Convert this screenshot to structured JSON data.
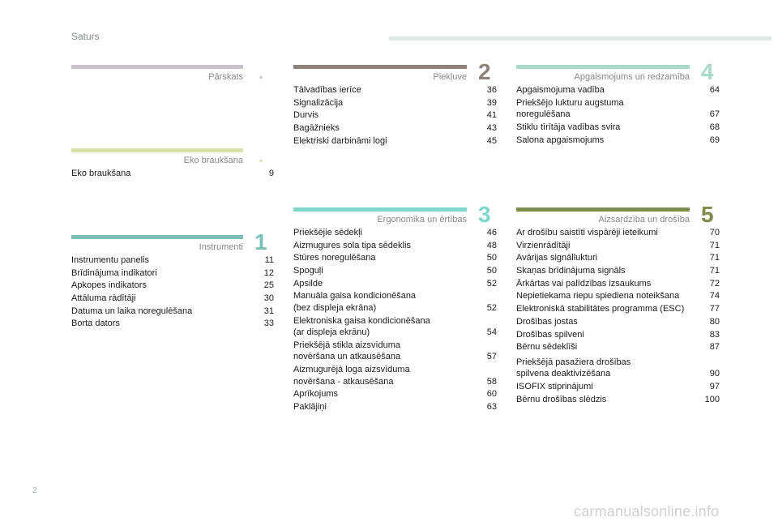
{
  "header": {
    "title": "Saturs"
  },
  "colors": {
    "parskats": "#c7c2cc",
    "eko": "#d9e2a9",
    "instrumenti": "#7bbfb7",
    "piekluve": "#8c8178",
    "ergonomika": "#7fd7cc",
    "apgaismojums": "#a8dac8",
    "aizsardziba": "#7d8c4a"
  },
  "sections": {
    "parskats": {
      "title": "Pārskats",
      "num": ""
    },
    "eko": {
      "title": "Eko braukšana",
      "num": "",
      "items": [
        {
          "label": "Eko braukšana",
          "page": "9"
        }
      ]
    },
    "instrumenti": {
      "title": "Instrumenti",
      "num": "1",
      "items": [
        {
          "label": "Instrumentu panelis",
          "page": "11"
        },
        {
          "label": "Brīdinājuma indikatori",
          "page": "12"
        },
        {
          "label": "Apkopes indikators",
          "page": "25"
        },
        {
          "label": "Attāluma rādītāji",
          "page": "30"
        },
        {
          "label": "Datuma un laika noregulēšana",
          "page": "31"
        },
        {
          "label": "Borta dators",
          "page": "33"
        }
      ]
    },
    "piekluve": {
      "title": "Piekļuve",
      "num": "2",
      "items": [
        {
          "label": "Tālvadības ierīce",
          "page": "36"
        },
        {
          "label": "Signalizācija",
          "page": "39"
        },
        {
          "label": "Durvis",
          "page": "41"
        },
        {
          "label": "Bagāžnieks",
          "page": "43"
        },
        {
          "label": "Elektriski darbināmi logi",
          "page": "45"
        }
      ]
    },
    "ergonomika": {
      "title": "Ergonomika un ērtības",
      "num": "3",
      "items": [
        {
          "label": "Priekšējie sēdekļi",
          "page": "46"
        },
        {
          "label": "Aizmugures sola tipa sēdeklis",
          "page": "48"
        },
        {
          "label": "Stūres noregulēšana",
          "page": "50"
        },
        {
          "label": "Spoguļi",
          "page": "50"
        },
        {
          "label": "Apsilde",
          "page": "52"
        },
        {
          "label": "Manuāla gaisa kondicionēšana\n    (bez displeja ekrāna)",
          "page": "52"
        },
        {
          "label": "Elektroniska gaisa kondicionēšana\n    (ar displeja ekrānu)",
          "page": "54"
        },
        {
          "label": "Priekšējā stikla aizsvīduma\n    novēršana un atkausēšana",
          "page": "57"
        },
        {
          "label": "Aizmugurējā loga aizsvīduma\n    novēršana - atkausēšana",
          "page": "58"
        },
        {
          "label": "Aprīkojums",
          "page": "60"
        },
        {
          "label": "Paklājiņi",
          "page": "63"
        }
      ]
    },
    "apgaismojums": {
      "title": "Apgaismojums un redzamība",
      "num": "4",
      "items": [
        {
          "label": "Apgaismojuma vadība",
          "page": "64"
        },
        {
          "label": "Priekšējo lukturu augstuma\n    noregulēšana",
          "page": "67"
        },
        {
          "label": "Stiklu tīrītāja vadības svira",
          "page": "68"
        },
        {
          "label": "Salona apgaismojums",
          "page": "69"
        }
      ]
    },
    "aizsardziba": {
      "title": "Aizsardzība un drošība",
      "num": "5",
      "items": [
        {
          "label": "Ar drošību saistīti vispārēji ieteikumi",
          "page": "70"
        },
        {
          "label": "Virzienrādītāji",
          "page": "71"
        },
        {
          "label": "Avārijas signāllukturi",
          "page": "71"
        },
        {
          "label": "Skaņas brīdinājuma signāls",
          "page": "71"
        },
        {
          "label": "Ārkārtas vai palīdzības izsaukums",
          "page": "72"
        },
        {
          "label": "Nepietiekama riepu spiediena noteikšana",
          "page": "74"
        },
        {
          "label": "Elektroniskā stabilitātes programma (ESC)",
          "page": "77"
        },
        {
          "label": "Drošības jostas",
          "page": "80"
        },
        {
          "label": "Drošības spilveni",
          "page": "83"
        },
        {
          "label": "Bērnu sēdeklīši",
          "page": "87"
        },
        {
          "label": "Priekšējā pasažiera drošības\n    spilvena deaktivizēšana",
          "page": "90"
        },
        {
          "label": "ISOFIX stiprinājumi",
          "page": "97"
        },
        {
          "label": "Bērnu drošības slēdzis",
          "page": "100"
        }
      ]
    }
  },
  "footer": {
    "page_number": "2",
    "watermark": "carmanualsonline.info"
  }
}
